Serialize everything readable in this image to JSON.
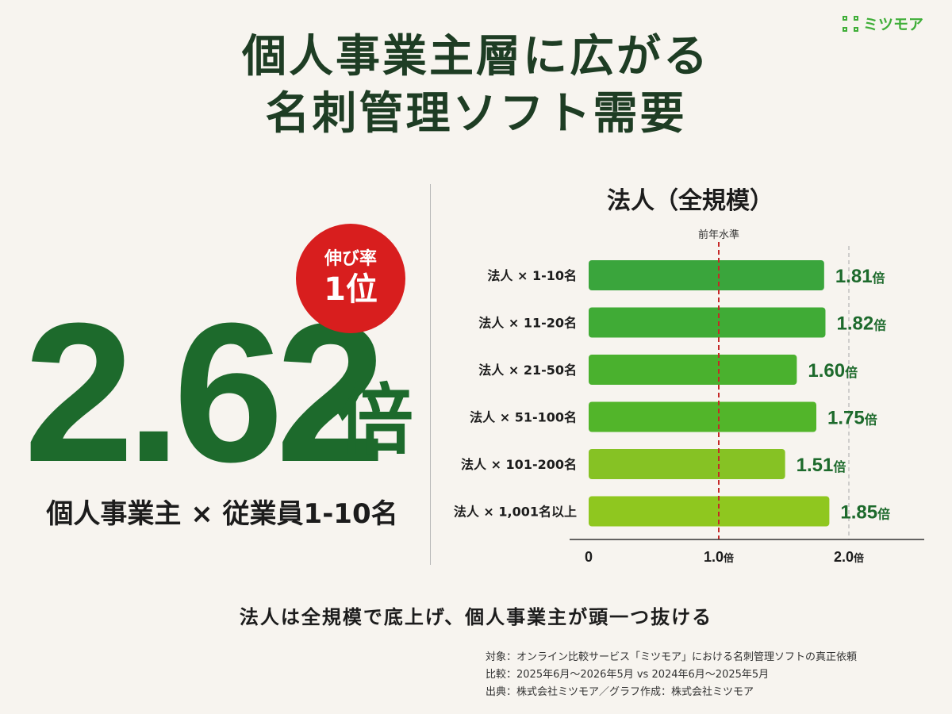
{
  "brand": {
    "name": "ミツモア",
    "color": "#3fae38"
  },
  "title": {
    "line1": "個人事業主層に広がる",
    "line2": "名刺管理ソフト需要"
  },
  "badge": {
    "line1": "伸び率",
    "line2": "1位",
    "color": "#d81e1e"
  },
  "highlight": {
    "value": "2.62",
    "unit": "倍",
    "label": "個人事業主 × 従業員1-10名",
    "color": "#1d6a2c"
  },
  "caption": "法人は全規模で底上げ、個人事業主が頭一つ抜ける",
  "notes": [
    "対象：オンライン比較サービス「ミツモア」における名刺管理ソフトの真正依頼",
    "比較：2025年6月〜2026年5月 vs 2024年6月〜2025年5月",
    "出典：株式会社ミツモア／グラフ作成：株式会社ミツモア"
  ],
  "chart_data": {
    "type": "bar",
    "orientation": "horizontal",
    "title": "法人（全規模）",
    "categories": [
      "法人 × 1-10名",
      "法人 × 11-20名",
      "法人 × 21-50名",
      "法人 × 51-100名",
      "法人 × 101-200名",
      "法人 × 1,001名以上"
    ],
    "values": [
      1.81,
      1.82,
      1.6,
      1.75,
      1.51,
      1.85
    ],
    "value_labels": [
      "1.81",
      "1.82",
      "1.60",
      "1.75",
      "1.51",
      "1.85"
    ],
    "value_unit": "倍",
    "bar_colors": [
      "#3aa53c",
      "#40ab36",
      "#4ab12e",
      "#52b52a",
      "#86c224",
      "#8fc71f"
    ],
    "xlim": [
      0,
      2.2
    ],
    "xticks": [
      {
        "value": 0,
        "label": "0",
        "unit": ""
      },
      {
        "value": 1.0,
        "label": "1.0",
        "unit": "倍"
      },
      {
        "value": 2.0,
        "label": "2.0",
        "unit": "倍"
      }
    ],
    "reference_line": {
      "value": 1.0,
      "label": "前年水準",
      "color": "#c62828",
      "style": "dashed"
    },
    "grid_line": {
      "value": 2.0,
      "style": "dashed",
      "color": "#b5b5b5"
    },
    "label_color": "#1d6a2c"
  }
}
